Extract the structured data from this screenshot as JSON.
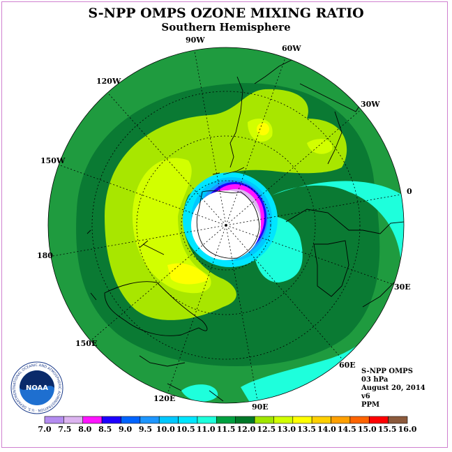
{
  "title": "S-NPP OMPS OZONE MIXING RATIO",
  "subtitle": "Southern Hemisphere",
  "longitude_labels": {
    "l90w": "90W",
    "l60w": "60W",
    "l30w": "30W",
    "l120w": "120W",
    "l150w": "150W",
    "l0": "0",
    "l180": "180",
    "l30e": "30E",
    "l60e": "60E",
    "l150e": "150E",
    "l120e": "120E",
    "l90e": "90E"
  },
  "info": {
    "instrument": "S-NPP OMPS",
    "level": "03 hPa",
    "date": "August 20, 2014",
    "version": "v6",
    "units": "PPM"
  },
  "logo": {
    "text": "NOAA",
    "ring_text": "NATIONAL OCEANIC AND ATMOSPHERIC ADMINISTRATION · U.S. DEPARTMENT OF COMMERCE"
  },
  "colorbar": {
    "labels": [
      "7.0",
      "7.5",
      "8.0",
      "8.5",
      "9.0",
      "9.5",
      "10.0",
      "10.5",
      "11.0",
      "11.5",
      "12.0",
      "12.5",
      "13.0",
      "13.5",
      "14.0",
      "14.5",
      "15.0",
      "15.5",
      "16.0"
    ],
    "colors": [
      "#b48cf0",
      "#dcb4f0",
      "#ff14ff",
      "#1e00ff",
      "#0064ff",
      "#1e96ff",
      "#00c8ff",
      "#00e6ff",
      "#1effdc",
      "#00a040",
      "#007828",
      "#a0e600",
      "#d2ff00",
      "#ffff00",
      "#ffd000",
      "#ffa000",
      "#ff6400",
      "#ff0000",
      "#8c5a3c"
    ]
  },
  "colors": {
    "background_field": "#009040",
    "outer_ring": "#1f9b3f"
  }
}
